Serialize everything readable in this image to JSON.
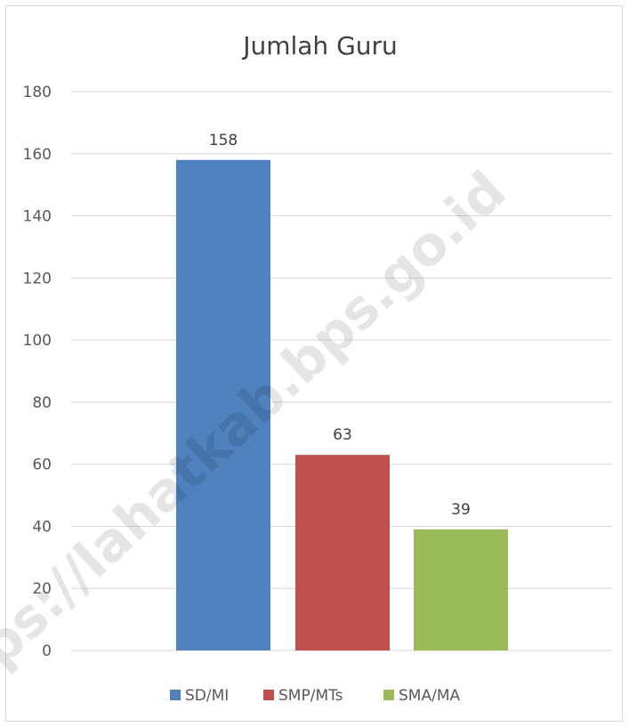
{
  "watermark": "https://lahatkab.bps.go.id",
  "chart_data": {
    "type": "bar",
    "title": "Jumlah Guru",
    "categories": [
      "SD/MI",
      "SMP/MTs",
      "SMA/MA"
    ],
    "values": [
      158,
      63,
      39
    ],
    "colors": [
      "#4f81bd",
      "#c0504d",
      "#9bbb59"
    ],
    "ylim": [
      0,
      180
    ],
    "yticks": [
      "0",
      "20",
      "40",
      "60",
      "80",
      "100",
      "120",
      "140",
      "160",
      "180"
    ],
    "data_labels": [
      "158",
      "63",
      "39"
    ],
    "legend": [
      "SD/MI",
      "SMP/MTs",
      "SMA/MA"
    ],
    "legend_position": "bottom",
    "grid": true,
    "xlabel": "",
    "ylabel": ""
  }
}
